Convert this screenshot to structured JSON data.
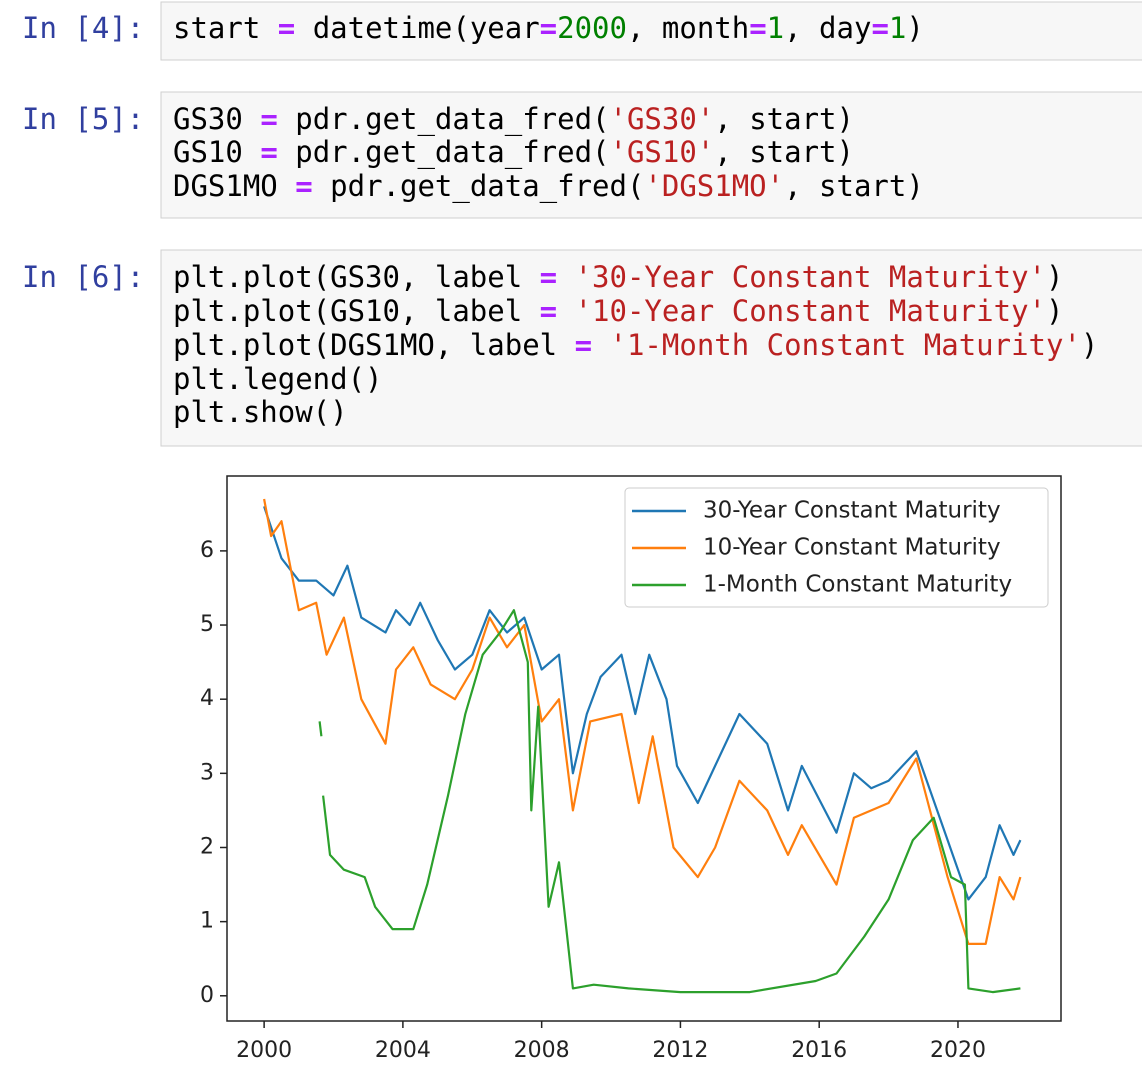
{
  "cells": [
    {
      "prompt": "In [4]:",
      "lines": [
        [
          "start ",
          "=",
          " datetime(year",
          "=",
          "2000",
          ", month",
          "=",
          "1",
          ", day",
          "=",
          "1",
          ")"
        ]
      ]
    },
    {
      "prompt": "In [5]:",
      "lines": [
        [
          "GS30 ",
          "=",
          " pdr.get_data_fred(",
          "'GS30'",
          ", start)"
        ],
        [
          "GS10 ",
          "=",
          " pdr.get_data_fred(",
          "'GS10'",
          ", start)"
        ],
        [
          "DGS1MO ",
          "=",
          " pdr.get_data_fred(",
          "'DGS1MO'",
          ", start)"
        ]
      ]
    },
    {
      "prompt": "In [6]:",
      "lines": [
        [
          "plt.plot(GS30, label ",
          "=",
          " ",
          "'30-Year Constant Maturity'",
          ")"
        ],
        [
          "plt.plot(GS10, label ",
          "=",
          " ",
          "'10-Year Constant Maturity'",
          ")"
        ],
        [
          "plt.plot(DGS1MO, label ",
          "=",
          " ",
          "'1-Month Constant Maturity'",
          ")"
        ],
        [
          "plt.legend()"
        ],
        [
          "plt.show()"
        ]
      ]
    }
  ],
  "chart_data": {
    "type": "line",
    "xlim": [
      1998.93,
      2022.97
    ],
    "xticks": [
      2000,
      2004,
      2008,
      2012,
      2016,
      2020
    ],
    "ylim": [
      -0.34,
      7.01
    ],
    "yticks": [
      0,
      1,
      2,
      3,
      4,
      5,
      6
    ],
    "legend": "upper right",
    "series": [
      {
        "name": "30-Year Constant Maturity",
        "color": "#1f77b4",
        "x": [
          2000,
          2000.5,
          2001,
          2001.5,
          2002,
          2002.4,
          2002.8,
          2003.5,
          2003.8,
          2004.2,
          2004.5,
          2005,
          2005.5,
          2006,
          2006.5,
          2007,
          2007.5,
          2008,
          2008.5,
          2008.9,
          2009.3,
          2009.7,
          2010.3,
          2010.7,
          2011.1,
          2011.6,
          2011.9,
          2012.5,
          2013,
          2013.7,
          2014.5,
          2015.1,
          2015.5,
          2016.5,
          2017,
          2017.5,
          2018,
          2018.8,
          2019.7,
          2020.3,
          2020.8,
          2021.2,
          2021.6,
          2021.8
        ],
        "values": [
          6.6,
          5.9,
          5.6,
          5.6,
          5.4,
          5.8,
          5.1,
          4.9,
          5.2,
          5.0,
          5.3,
          4.8,
          4.4,
          4.6,
          5.2,
          4.9,
          5.1,
          4.4,
          4.6,
          3.0,
          3.8,
          4.3,
          4.6,
          3.8,
          4.6,
          4.0,
          3.1,
          2.6,
          3.1,
          3.8,
          3.4,
          2.5,
          3.1,
          2.2,
          3.0,
          2.8,
          2.9,
          3.3,
          2.1,
          1.3,
          1.6,
          2.3,
          1.9,
          2.1
        ]
      },
      {
        "name": "10-Year Constant Maturity",
        "color": "#ff7f0e",
        "x": [
          2000,
          2000.2,
          2000.5,
          2001,
          2001.5,
          2001.8,
          2002.3,
          2002.8,
          2003.5,
          2003.8,
          2004.3,
          2004.8,
          2005.5,
          2006,
          2006.5,
          2007,
          2007.5,
          2008,
          2008.5,
          2008.9,
          2009.4,
          2010.3,
          2010.8,
          2011.2,
          2011.8,
          2012.5,
          2013,
          2013.7,
          2014.5,
          2015.1,
          2015.5,
          2016.5,
          2017,
          2018,
          2018.8,
          2019.7,
          2020.3,
          2020.8,
          2021.2,
          2021.6,
          2021.8
        ],
        "values": [
          6.7,
          6.2,
          6.4,
          5.2,
          5.3,
          4.6,
          5.1,
          4.0,
          3.4,
          4.4,
          4.7,
          4.2,
          4.0,
          4.4,
          5.1,
          4.7,
          5.0,
          3.7,
          4.0,
          2.5,
          3.7,
          3.8,
          2.6,
          3.5,
          2.0,
          1.6,
          2.0,
          2.9,
          2.5,
          1.9,
          2.3,
          1.5,
          2.4,
          2.6,
          3.2,
          1.6,
          0.7,
          0.7,
          1.6,
          1.3,
          1.6
        ]
      },
      {
        "name": "1-Month Constant Maturity",
        "color": "#2ca02c",
        "x": [
          2001.6,
          2001.65,
          2001.68,
          2001.7,
          2001.9,
          2002.3,
          2002.9,
          2003.2,
          2003.7,
          2004.3,
          2004.7,
          2005.3,
          2005.8,
          2006.3,
          2006.8,
          2007.2,
          2007.6,
          2007.7,
          2007.9,
          2008.2,
          2008.5,
          2008.9,
          2009.5,
          2010.5,
          2012,
          2014,
          2015.9,
          2016.5,
          2017.3,
          2018,
          2018.7,
          2019.3,
          2019.8,
          2020.2,
          2020.3,
          2021,
          2021.8
        ],
        "values": [
          3.7,
          3.5,
          null,
          2.7,
          1.9,
          1.7,
          1.6,
          1.2,
          0.9,
          0.9,
          1.5,
          2.7,
          3.8,
          4.6,
          4.9,
          5.2,
          4.5,
          2.5,
          3.9,
          1.2,
          1.8,
          0.1,
          0.15,
          0.1,
          0.05,
          0.05,
          0.2,
          0.3,
          0.8,
          1.3,
          2.1,
          2.4,
          1.6,
          1.5,
          0.1,
          0.05,
          0.1
        ]
      }
    ]
  }
}
